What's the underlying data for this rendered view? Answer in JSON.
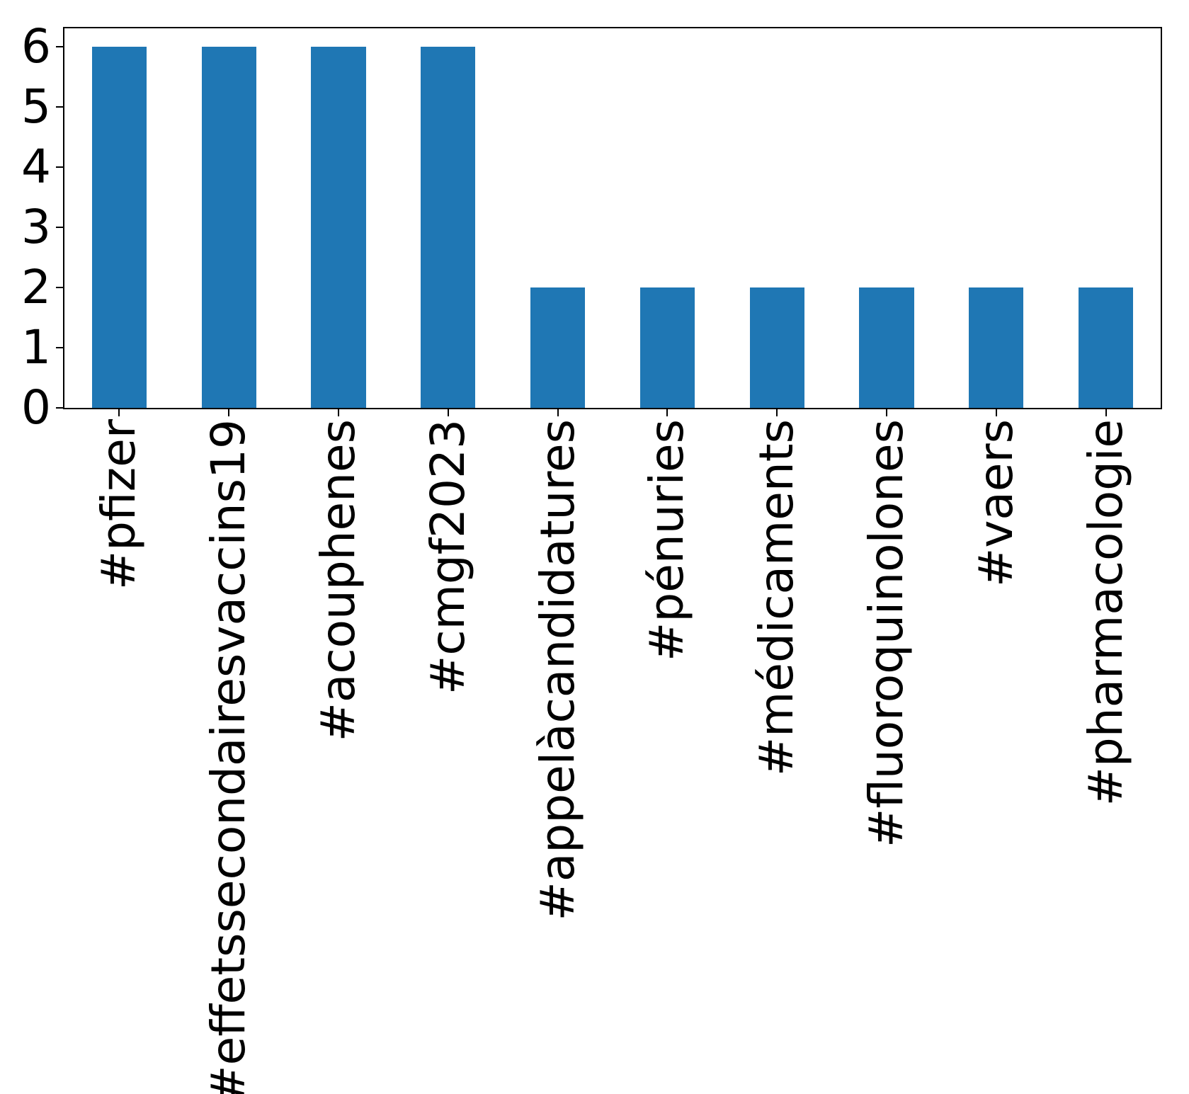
{
  "chart_data": {
    "type": "bar",
    "categories": [
      "#pfizer",
      "#effetssecondairesvaccins19",
      "#acouphenes",
      "#cmgf2023",
      "#appelàcandidatures",
      "#pénuries",
      "#médicaments",
      "#fluoroquinolones",
      "#vaers",
      "#pharmacologie"
    ],
    "values": [
      6,
      6,
      6,
      6,
      2,
      2,
      2,
      2,
      2,
      2
    ],
    "title": "",
    "xlabel": "",
    "ylabel": "",
    "ylim": [
      0,
      6.3
    ],
    "yticks": [
      0,
      1,
      2,
      3,
      4,
      5,
      6
    ],
    "bar_color": "#1f77b4",
    "axis_color": "#000000",
    "bar_fraction": 0.5,
    "grid": false,
    "legend": false,
    "x_tick_rotation_deg": 90
  }
}
